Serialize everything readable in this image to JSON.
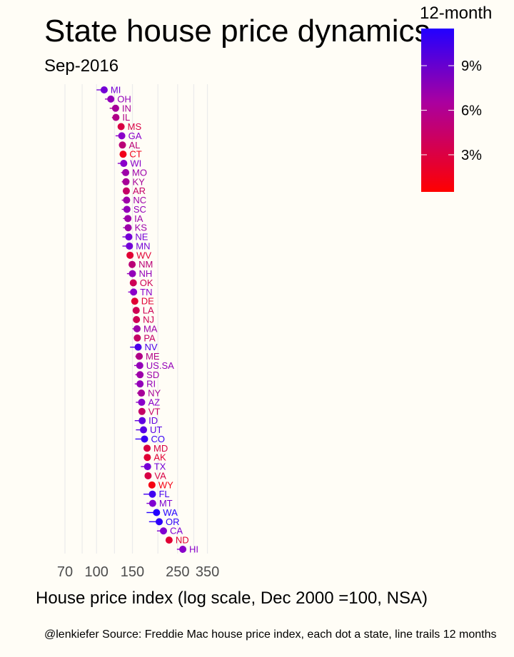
{
  "title": "State house price dynamics",
  "subtitle": "Sep-2016",
  "caption": "@lenkiefer Source: Freddie Mac house price index, each dot a state, line trails 12 months",
  "chart_data": {
    "type": "scatter",
    "title": "State house price dynamics",
    "subtitle": "Sep-2016",
    "xlabel": "House price index (log scale, Dec 2000 =100, NSA)",
    "x_scale": "log",
    "x_ticks": [
      70,
      100,
      150,
      250,
      350
    ],
    "x_tick_labels": [
      "70",
      "100",
      "150",
      "250",
      "350"
    ],
    "xlim": [
      62,
      380
    ],
    "legend": {
      "title": "12-month",
      "ticks": [
        "3%",
        "6%",
        "9%"
      ],
      "tick_values": [
        0.03,
        0.06,
        0.09
      ],
      "range": [
        0.005,
        0.115
      ],
      "colors": [
        "#ff0000",
        "#8800cc",
        "#2200ff"
      ],
      "placement": "top-right"
    },
    "points": [
      {
        "state": "MI",
        "value": 109,
        "year_ago": 100,
        "growth": 0.075
      },
      {
        "state": "OH",
        "value": 117.5,
        "year_ago": 110,
        "growth": 0.06
      },
      {
        "state": "IN",
        "value": 124,
        "year_ago": 116,
        "growth": 0.05
      },
      {
        "state": "IL",
        "value": 124.5,
        "year_ago": 119,
        "growth": 0.045
      },
      {
        "state": "MS",
        "value": 132,
        "year_ago": 129,
        "growth": 0.025
      },
      {
        "state": "GA",
        "value": 133,
        "year_ago": 124,
        "growth": 0.065
      },
      {
        "state": "AL",
        "value": 134,
        "year_ago": 129,
        "growth": 0.04
      },
      {
        "state": "CT",
        "value": 135,
        "year_ago": 131,
        "growth": 0.012
      },
      {
        "state": "WI",
        "value": 136,
        "year_ago": 127,
        "growth": 0.065
      },
      {
        "state": "MO",
        "value": 139,
        "year_ago": 132,
        "growth": 0.055
      },
      {
        "state": "KY",
        "value": 139.5,
        "year_ago": 133,
        "growth": 0.05
      },
      {
        "state": "AR",
        "value": 140,
        "year_ago": 135,
        "growth": 0.035
      },
      {
        "state": "NC",
        "value": 140.5,
        "year_ago": 133,
        "growth": 0.055
      },
      {
        "state": "SC",
        "value": 141,
        "year_ago": 133,
        "growth": 0.06
      },
      {
        "state": "IA",
        "value": 142.5,
        "year_ago": 135,
        "growth": 0.055
      },
      {
        "state": "KS",
        "value": 143,
        "year_ago": 135,
        "growth": 0.055
      },
      {
        "state": "NE",
        "value": 144,
        "year_ago": 134,
        "growth": 0.075
      },
      {
        "state": "MN",
        "value": 145,
        "year_ago": 134,
        "growth": 0.075
      },
      {
        "state": "WV",
        "value": 146,
        "year_ago": 143,
        "growth": 0.02
      },
      {
        "state": "NM",
        "value": 149.5,
        "year_ago": 144,
        "growth": 0.04
      },
      {
        "state": "NH",
        "value": 150,
        "year_ago": 141,
        "growth": 0.06
      },
      {
        "state": "OK",
        "value": 151.5,
        "year_ago": 147,
        "growth": 0.03
      },
      {
        "state": "TN",
        "value": 152,
        "year_ago": 143,
        "growth": 0.065
      },
      {
        "state": "DE",
        "value": 154,
        "year_ago": 151,
        "growth": 0.02
      },
      {
        "state": "LA",
        "value": 156.5,
        "year_ago": 152,
        "growth": 0.03
      },
      {
        "state": "NJ",
        "value": 157,
        "year_ago": 152,
        "growth": 0.03
      },
      {
        "state": "MA",
        "value": 158,
        "year_ago": 150,
        "growth": 0.055
      },
      {
        "state": "PA",
        "value": 158.5,
        "year_ago": 153,
        "growth": 0.035
      },
      {
        "state": "NV",
        "value": 160,
        "year_ago": 146,
        "growth": 0.095
      },
      {
        "state": "ME",
        "value": 162,
        "year_ago": 155,
        "growth": 0.045
      },
      {
        "state": "US.SA",
        "value": 163,
        "year_ago": 153,
        "growth": 0.06
      },
      {
        "state": "SD",
        "value": 163.5,
        "year_ago": 155,
        "growth": 0.055
      },
      {
        "state": "RI",
        "value": 163.5,
        "year_ago": 154,
        "growth": 0.06
      },
      {
        "state": "NY",
        "value": 166,
        "year_ago": 158,
        "growth": 0.05
      },
      {
        "state": "AZ",
        "value": 166.5,
        "year_ago": 156,
        "growth": 0.065
      },
      {
        "state": "VT",
        "value": 167,
        "year_ago": 161,
        "growth": 0.035
      },
      {
        "state": "ID",
        "value": 167.5,
        "year_ago": 154,
        "growth": 0.085
      },
      {
        "state": "UT",
        "value": 170,
        "year_ago": 156,
        "growth": 0.09
      },
      {
        "state": "CO",
        "value": 172,
        "year_ago": 155,
        "growth": 0.105
      },
      {
        "state": "MD",
        "value": 177,
        "year_ago": 172,
        "growth": 0.025
      },
      {
        "state": "AK",
        "value": 177.5,
        "year_ago": 173,
        "growth": 0.02
      },
      {
        "state": "TX",
        "value": 178,
        "year_ago": 165,
        "growth": 0.075
      },
      {
        "state": "VA",
        "value": 179,
        "year_ago": 174,
        "growth": 0.025
      },
      {
        "state": "WY",
        "value": 187,
        "year_ago": 182,
        "growth": 0.01
      },
      {
        "state": "FL",
        "value": 188,
        "year_ago": 170,
        "growth": 0.1
      },
      {
        "state": "MT",
        "value": 188.5,
        "year_ago": 176,
        "growth": 0.07
      },
      {
        "state": "WA",
        "value": 197,
        "year_ago": 176,
        "growth": 0.115
      },
      {
        "state": "OR",
        "value": 203,
        "year_ago": 181,
        "growth": 0.11
      },
      {
        "state": "CA",
        "value": 213,
        "year_ago": 198,
        "growth": 0.07
      },
      {
        "state": "ND",
        "value": 227,
        "year_ago": 222,
        "growth": 0.02
      },
      {
        "state": "HI",
        "value": 265,
        "year_ago": 248,
        "growth": 0.065
      }
    ]
  }
}
